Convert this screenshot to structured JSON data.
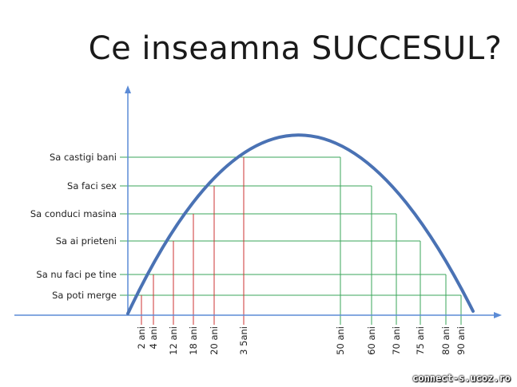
{
  "title": "Ce inseamna SUCCESUL?",
  "watermark": "connect-s.ucoz.ro",
  "colors": {
    "curve": "#4a72b4",
    "axis": "#5b8bd6",
    "horizontal_guides": "#3aa55a",
    "rising_verticals": "#cc3333",
    "falling_verticals": "#3aa55a"
  },
  "levels": [
    {
      "label": "Sa poti merge",
      "rise_age": "2 ani",
      "fall_age": "90 ani"
    },
    {
      "label": "Sa nu faci pe tine",
      "rise_age": "4 ani",
      "fall_age": "80 ani"
    },
    {
      "label": "Sa ai prieteni",
      "rise_age": "12 ani",
      "fall_age": "75 ani"
    },
    {
      "label": "Sa conduci masina",
      "rise_age": "18 ani",
      "fall_age": "70 ani"
    },
    {
      "label": "Sa faci sex",
      "rise_age": "20 ani",
      "fall_age": "60 ani"
    },
    {
      "label": "Sa castigi bani",
      "rise_age": "3 5ani",
      "fall_age": "50 ani"
    }
  ]
}
